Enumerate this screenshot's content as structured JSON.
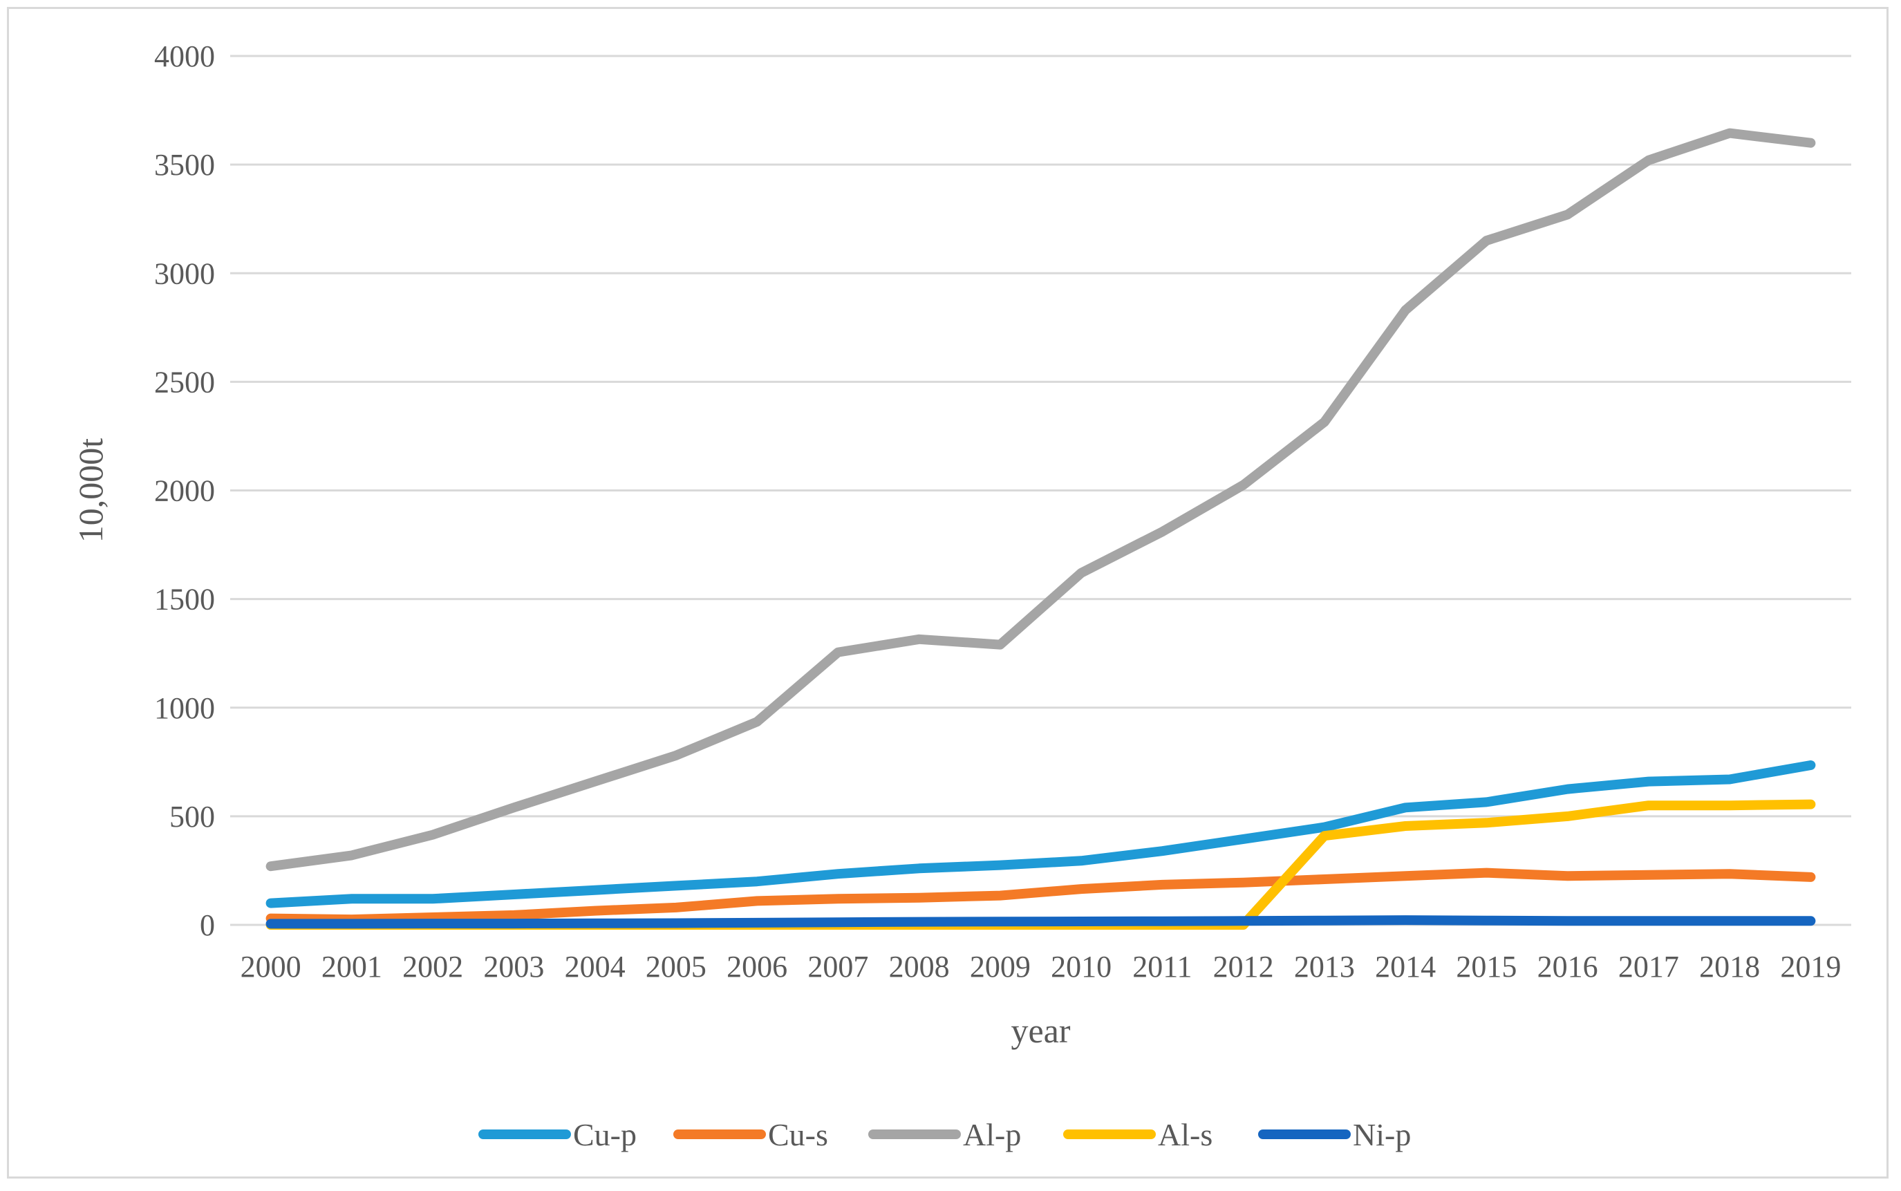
{
  "chart_data": {
    "type": "line",
    "title": "",
    "xlabel": "year",
    "ylabel": "10,000t",
    "ylim": [
      0,
      4000
    ],
    "yticks": [
      0,
      500,
      1000,
      1500,
      2000,
      2500,
      3000,
      3500,
      4000
    ],
    "grid": true,
    "legend_position": "bottom",
    "categories": [
      "2000",
      "2001",
      "2002",
      "2003",
      "2004",
      "2005",
      "2006",
      "2007",
      "2008",
      "2009",
      "2010",
      "2011",
      "2012",
      "2013",
      "2014",
      "2015",
      "2016",
      "2017",
      "2018",
      "2019"
    ],
    "series": [
      {
        "name": "Cu-p",
        "color": "#1f9ad6",
        "values": [
          100,
          120,
          120,
          140,
          160,
          180,
          200,
          235,
          260,
          275,
          295,
          340,
          395,
          450,
          540,
          565,
          625,
          660,
          670,
          735
        ]
      },
      {
        "name": "Cu-s",
        "color": "#f47a26",
        "values": [
          30,
          25,
          35,
          45,
          65,
          80,
          110,
          120,
          125,
          135,
          165,
          185,
          195,
          210,
          225,
          240,
          225,
          230,
          235,
          220
        ]
      },
      {
        "name": "Al-p",
        "color": "#a5a5a5",
        "values": [
          270,
          320,
          415,
          540,
          660,
          780,
          935,
          1255,
          1315,
          1290,
          1620,
          1810,
          2025,
          2315,
          2830,
          3150,
          3270,
          3520,
          3645,
          3600
        ]
      },
      {
        "name": "Al-s",
        "color": "#ffc000",
        "values": [
          0,
          0,
          0,
          0,
          0,
          0,
          0,
          0,
          0,
          0,
          0,
          0,
          0,
          410,
          455,
          470,
          500,
          550,
          550,
          555
        ]
      },
      {
        "name": "Ni-p",
        "color": "#1565c0",
        "values": [
          5,
          5,
          6,
          6,
          7,
          8,
          10,
          12,
          14,
          15,
          16,
          17,
          18,
          20,
          22,
          20,
          18,
          18,
          18,
          18
        ]
      }
    ]
  }
}
